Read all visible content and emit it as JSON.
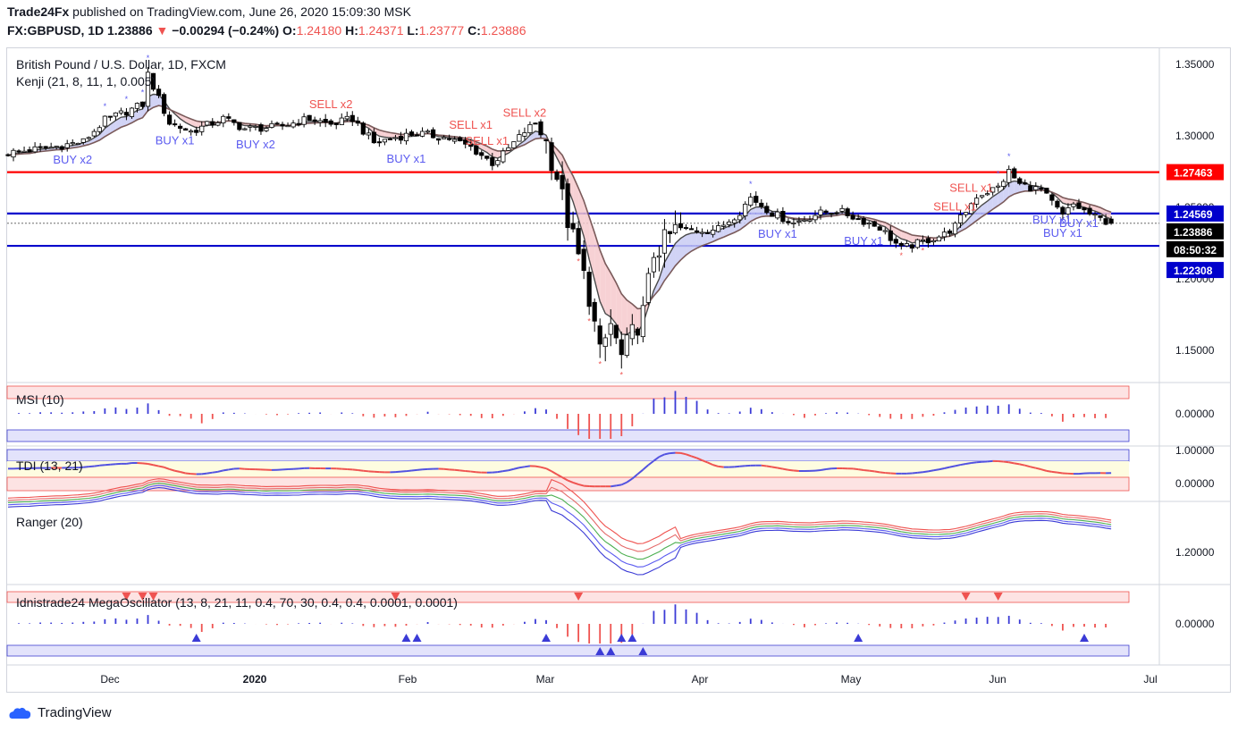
{
  "header": {
    "line1_brand": "Trade24Fx",
    "line1_rest": " published on TradingView.com, June 26, 2020 15:09:30 MSK",
    "symbol": "FX:GBPUSD, 1D",
    "last": "1.23886",
    "change": "−0.00294 (−0.24%)",
    "o_label": "O:",
    "o": "1.24180",
    "h_label": "H:",
    "h": "1.24371",
    "l_label": "L:",
    "l": "1.23777",
    "c_label": "C:",
    "c": "1.23886"
  },
  "main_pane": {
    "title": "British Pound / U.S. Dollar, 1D, FXCM",
    "indicator": "Kenji (21, 8, 11, 1, 0.005)"
  },
  "panes": {
    "msi": "MSI (10)",
    "tdi": "TDI (13, 21)",
    "ranger": "Ranger (20)",
    "mega": "Idnistrade24 MegaOscillator (13, 8, 21, 11, 0.4, 70, 30, 0.4,  0.4, 0.0001,  0.0001)"
  },
  "price_axis": [
    "1.35000",
    "1.30000",
    "1.25000",
    "1.20000",
    "1.15000"
  ],
  "price_tags": {
    "red_level": "1.27463",
    "blue_upper": "1.24569",
    "last_price": "1.23886",
    "countdown": "08:50:32",
    "blue_lower": "1.22308"
  },
  "sub_axis": {
    "msi": "0.00000",
    "tdi_top": "1.00000",
    "tdi_zero": "0.00000",
    "ranger": "1.20000",
    "mega": "0.00000"
  },
  "time_axis": [
    "Dec",
    "2020",
    "Feb",
    "Mar",
    "Apr",
    "May",
    "Jun",
    "Jul"
  ],
  "signals": [
    {
      "text": "BUY x2",
      "kind": "buy"
    },
    {
      "text": "BUY x1",
      "kind": "buy"
    },
    {
      "text": "BUY x2",
      "kind": "buy"
    },
    {
      "text": "SELL x2",
      "kind": "sell"
    },
    {
      "text": "BUY x1",
      "kind": "buy"
    },
    {
      "text": "SELL x1",
      "kind": "sell"
    },
    {
      "text": "SELL x1",
      "kind": "sell"
    },
    {
      "text": "SELL x2",
      "kind": "sell"
    },
    {
      "text": "BUY x1",
      "kind": "buy"
    },
    {
      "text": "BUY x1",
      "kind": "buy"
    },
    {
      "text": "SELL x1",
      "kind": "sell"
    },
    {
      "text": "SELL x1",
      "kind": "sell"
    },
    {
      "text": "BUY x1",
      "kind": "buy"
    },
    {
      "text": "BUY x1",
      "kind": "buy"
    },
    {
      "text": "BUY x1",
      "kind": "buy"
    }
  ],
  "footer": {
    "brand": "TradingView"
  },
  "colors": {
    "up": "#ffffff",
    "down": "#000000",
    "red_line": "#ff0000",
    "blue_line": "#0000cc",
    "buy": "#5b5bf0",
    "sell": "#ef5350",
    "ma_cloud_up": "#c9cbf3",
    "ma_cloud_down": "#f6c9cc"
  },
  "chart_data": [
    {
      "type": "candlestick",
      "title": "British Pound / U.S. Dollar, 1D, FXCM",
      "x_ticks": [
        "Dec",
        "2020",
        "Feb",
        "Mar",
        "Apr",
        "May",
        "Jun",
        "Jul"
      ],
      "ylim": [
        1.13,
        1.36
      ],
      "y_ticks": [
        1.35,
        1.3,
        1.25,
        1.2,
        1.15
      ],
      "horizontal_lines": [
        {
          "value": 1.27463,
          "color": "red"
        },
        {
          "value": 1.24569,
          "color": "blue"
        },
        {
          "value": 1.22308,
          "color": "blue"
        }
      ],
      "last_price": 1.23886,
      "close_path": [
        [
          0,
          1.288
        ],
        [
          8,
          1.292
        ],
        [
          14,
          1.296
        ],
        [
          18,
          1.311
        ],
        [
          22,
          1.317
        ],
        [
          25,
          1.322
        ],
        [
          26,
          1.343
        ],
        [
          30,
          1.309
        ],
        [
          34,
          1.303
        ],
        [
          40,
          1.312
        ],
        [
          44,
          1.305
        ],
        [
          50,
          1.306
        ],
        [
          56,
          1.312
        ],
        [
          60,
          1.308
        ],
        [
          64,
          1.312
        ],
        [
          68,
          1.295
        ],
        [
          72,
          1.299
        ],
        [
          76,
          1.302
        ],
        [
          82,
          1.298
        ],
        [
          86,
          1.292
        ],
        [
          90,
          1.281
        ],
        [
          92,
          1.287
        ],
        [
          96,
          1.303
        ],
        [
          98,
          1.309
        ],
        [
          100,
          1.295
        ],
        [
          102,
          1.272
        ],
        [
          104,
          1.241
        ],
        [
          106,
          1.215
        ],
        [
          108,
          1.188
        ],
        [
          110,
          1.147
        ],
        [
          112,
          1.168
        ],
        [
          114,
          1.145
        ],
        [
          116,
          1.161
        ],
        [
          118,
          1.176
        ],
        [
          120,
          1.218
        ],
        [
          124,
          1.234
        ],
        [
          128,
          1.234
        ],
        [
          132,
          1.235
        ],
        [
          136,
          1.247
        ],
        [
          138,
          1.257
        ],
        [
          142,
          1.246
        ],
        [
          146,
          1.239
        ],
        [
          150,
          1.245
        ],
        [
          154,
          1.248
        ],
        [
          158,
          1.242
        ],
        [
          162,
          1.236
        ],
        [
          166,
          1.221
        ],
        [
          170,
          1.226
        ],
        [
          174,
          1.231
        ],
        [
          176,
          1.237
        ],
        [
          180,
          1.258
        ],
        [
          184,
          1.264
        ],
        [
          186,
          1.275
        ],
        [
          188,
          1.266
        ],
        [
          192,
          1.262
        ],
        [
          196,
          1.244
        ],
        [
          198,
          1.252
        ],
        [
          202,
          1.243
        ],
        [
          205,
          1.239
        ]
      ]
    },
    {
      "type": "bar",
      "title": "MSI (10)",
      "zero_line": 0.0
    },
    {
      "type": "line",
      "title": "TDI (13, 21)",
      "y_ticks": [
        1.0,
        0.0
      ]
    },
    {
      "type": "line",
      "title": "Ranger (20)",
      "y_ticks": [
        1.2
      ]
    },
    {
      "type": "bar",
      "title": "Idnistrade24 MegaOscillator (13, 8, 21, 11, 0.4, 70, 30, 0.4,  0.4, 0.0001,  0.0001)",
      "zero_line": 0.0
    }
  ]
}
